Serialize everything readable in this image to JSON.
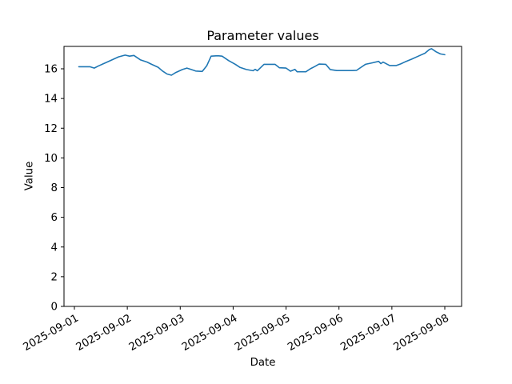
{
  "figure": {
    "background": "#ffffff"
  },
  "chart_data": {
    "type": "line",
    "title": "Parameter values",
    "xlabel": "Date",
    "ylabel": "Value",
    "x_tick_labels": [
      "2025-09-01",
      "2025-09-02",
      "2025-09-03",
      "2025-09-04",
      "2025-09-05",
      "2025-09-06",
      "2025-09-07",
      "2025-09-08"
    ],
    "x_tick_positions_hours": [
      0,
      24,
      48,
      72,
      96,
      120,
      144,
      168
    ],
    "x_tick_rotation_deg": -30,
    "yticks": [
      0,
      2,
      4,
      6,
      8,
      10,
      12,
      14,
      16
    ],
    "ylim": [
      0,
      17.51
    ],
    "xlim_hours": [
      -4.7,
      175.7
    ],
    "grid": false,
    "legend_position": "none",
    "line_color": "#1f77b4",
    "axis_color": "#000000",
    "series": [
      {
        "name": "parameter-values",
        "x_unit": "hours since 2025-09-01 00:00",
        "x_hours": [
          2,
          7,
          9,
          11,
          14,
          17,
          20,
          23,
          25,
          27,
          30,
          33,
          35,
          38,
          40,
          42,
          44,
          46,
          49,
          51,
          53,
          55,
          58,
          60,
          62,
          65,
          67,
          70,
          73,
          75,
          78,
          81,
          82,
          83,
          86,
          91,
          93,
          96,
          98,
          100,
          101,
          105,
          107,
          109,
          111,
          114,
          116,
          119,
          122,
          126,
          128,
          130,
          132,
          135,
          138,
          139,
          140,
          143,
          146,
          148,
          150,
          153,
          156,
          159,
          161,
          162,
          164,
          166,
          168
        ],
        "values": [
          16.14,
          16.14,
          16.05,
          16.2,
          16.4,
          16.6,
          16.8,
          16.92,
          16.85,
          16.9,
          16.6,
          16.45,
          16.3,
          16.1,
          15.85,
          15.65,
          15.57,
          15.75,
          15.95,
          16.05,
          15.95,
          15.85,
          15.82,
          16.2,
          16.85,
          16.88,
          16.85,
          16.55,
          16.3,
          16.1,
          15.95,
          15.87,
          15.96,
          15.87,
          16.3,
          16.3,
          16.07,
          16.05,
          15.84,
          15.96,
          15.8,
          15.8,
          16.0,
          16.15,
          16.32,
          16.3,
          15.95,
          15.88,
          15.88,
          15.88,
          15.9,
          16.1,
          16.3,
          16.4,
          16.5,
          16.35,
          16.45,
          16.22,
          16.22,
          16.33,
          16.47,
          16.65,
          16.85,
          17.05,
          17.3,
          17.35,
          17.15,
          17.0,
          16.95
        ]
      }
    ]
  }
}
